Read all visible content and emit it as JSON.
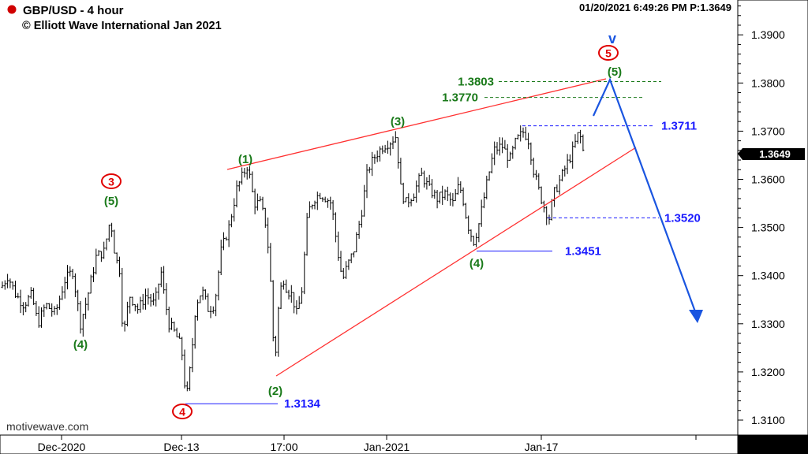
{
  "header": {
    "title": "GBP/USD - 4 hour",
    "copyright": "© Elliott Wave International Jan 2021",
    "timestamp": "01/20/2021 6:49:26 PM  P:1.3649",
    "status_dot_color": "#d00000"
  },
  "watermark": "motivewave.com",
  "colors": {
    "price_bars": "#000000",
    "wave_labels": "#1a7a1a",
    "circled_labels": "#e00000",
    "levels_blue": "#1a1aff",
    "channel_lines": "#ff3030",
    "projection_arrow": "#1a55e0",
    "current_price_box": "#000000"
  },
  "chart_data": {
    "type": "ohlc",
    "title": "GBP/USD - 4 hour",
    "y_axis": {
      "min": 1.305,
      "max": 1.395,
      "ticks": [
        "1.3100",
        "1.3200",
        "1.3300",
        "1.3400",
        "1.3500",
        "1.3600",
        "1.3700",
        "1.3800",
        "1.3900"
      ],
      "position": "right",
      "grid": false
    },
    "x_axis": {
      "tick_labels": [
        "Dec-2020",
        "Dec-13",
        "17:00",
        "Jan-2021",
        "Jan-17"
      ]
    },
    "current_price": "1.3649",
    "price_path": [
      [
        0,
        1.337
      ],
      [
        10,
        1.34
      ],
      [
        20,
        1.336
      ],
      [
        30,
        1.334
      ],
      [
        40,
        1.336
      ],
      [
        48,
        1.33
      ],
      [
        58,
        1.334
      ],
      [
        70,
        1.332
      ],
      [
        82,
        1.339
      ],
      [
        92,
        1.341
      ],
      [
        102,
        1.33
      ],
      [
        110,
        1.335
      ],
      [
        122,
        1.344
      ],
      [
        132,
        1.345
      ],
      [
        140,
        1.352
      ],
      [
        146,
        1.344
      ],
      [
        152,
        1.341
      ],
      [
        156,
        1.327
      ],
      [
        164,
        1.336
      ],
      [
        175,
        1.333
      ],
      [
        185,
        1.336
      ],
      [
        196,
        1.334
      ],
      [
        204,
        1.341
      ],
      [
        208,
        1.336
      ],
      [
        214,
        1.33
      ],
      [
        222,
        1.328
      ],
      [
        230,
        1.325
      ],
      [
        236,
        1.314
      ],
      [
        242,
        1.322
      ],
      [
        248,
        1.334
      ],
      [
        256,
        1.337
      ],
      [
        264,
        1.333
      ],
      [
        272,
        1.334
      ],
      [
        280,
        1.345
      ],
      [
        290,
        1.35
      ],
      [
        300,
        1.358
      ],
      [
        308,
        1.361
      ],
      [
        314,
        1.363
      ],
      [
        318,
        1.359
      ],
      [
        322,
        1.355
      ],
      [
        330,
        1.355
      ],
      [
        338,
        1.35
      ],
      [
        344,
        1.336
      ],
      [
        348,
        1.32
      ],
      [
        352,
        1.332
      ],
      [
        358,
        1.34
      ],
      [
        364,
        1.337
      ],
      [
        370,
        1.336
      ],
      [
        376,
        1.332
      ],
      [
        382,
        1.336
      ],
      [
        390,
        1.353
      ],
      [
        398,
        1.356
      ],
      [
        406,
        1.357
      ],
      [
        414,
        1.356
      ],
      [
        420,
        1.355
      ],
      [
        428,
        1.345
      ],
      [
        434,
        1.339
      ],
      [
        440,
        1.342
      ],
      [
        448,
        1.345
      ],
      [
        458,
        1.353
      ],
      [
        466,
        1.362
      ],
      [
        476,
        1.365
      ],
      [
        486,
        1.367
      ],
      [
        496,
        1.368
      ],
      [
        502,
        1.369
      ],
      [
        508,
        1.358
      ],
      [
        514,
        1.355
      ],
      [
        524,
        1.357
      ],
      [
        534,
        1.361
      ],
      [
        544,
        1.358
      ],
      [
        554,
        1.356
      ],
      [
        564,
        1.357
      ],
      [
        574,
        1.355
      ],
      [
        582,
        1.359
      ],
      [
        588,
        1.355
      ],
      [
        592,
        1.351
      ],
      [
        600,
        1.347
      ],
      [
        606,
        1.35
      ],
      [
        612,
        1.355
      ],
      [
        618,
        1.36
      ],
      [
        626,
        1.366
      ],
      [
        636,
        1.367
      ],
      [
        646,
        1.364
      ],
      [
        654,
        1.368
      ],
      [
        664,
        1.37
      ],
      [
        670,
        1.368
      ],
      [
        676,
        1.362
      ],
      [
        684,
        1.357
      ],
      [
        690,
        1.354
      ],
      [
        696,
        1.352
      ],
      [
        702,
        1.357
      ],
      [
        710,
        1.36
      ],
      [
        718,
        1.363
      ],
      [
        726,
        1.366
      ],
      [
        734,
        1.37
      ],
      [
        740,
        1.365
      ]
    ],
    "levels": [
      {
        "label": "1.3803",
        "value": 1.3803,
        "color": "green",
        "style": "dashed"
      },
      {
        "label": "1.3770",
        "value": 1.377,
        "color": "green",
        "style": "dashed"
      },
      {
        "label": "1.3711",
        "value": 1.3711,
        "color": "blue",
        "style": "dashed"
      },
      {
        "label": "1.3520",
        "value": 1.352,
        "color": "blue",
        "style": "dashed"
      },
      {
        "label": "1.3451",
        "value": 1.3451,
        "color": "blue",
        "style": "solid"
      },
      {
        "label": "1.3134",
        "value": 1.3134,
        "color": "blue",
        "style": "solid"
      }
    ],
    "wave_labels": [
      {
        "text": "(4)",
        "color": "green"
      },
      {
        "text": "(5)",
        "color": "green"
      },
      {
        "text": "3",
        "color": "red",
        "circled": true
      },
      {
        "text": "4",
        "color": "red",
        "circled": true
      },
      {
        "text": "(1)",
        "color": "green"
      },
      {
        "text": "(2)",
        "color": "green"
      },
      {
        "text": "(3)",
        "color": "green"
      },
      {
        "text": "(4)",
        "color": "green"
      },
      {
        "text": "(5)",
        "color": "green"
      },
      {
        "text": "5",
        "color": "red",
        "circled": true
      },
      {
        "text": "v",
        "color": "blue"
      }
    ]
  }
}
